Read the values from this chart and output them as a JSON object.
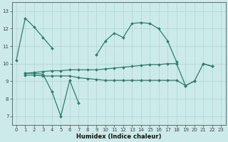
{
  "xlabel": "Humidex (Indice chaleur)",
  "x_values": [
    0,
    1,
    2,
    3,
    4,
    5,
    6,
    7,
    8,
    9,
    10,
    11,
    12,
    13,
    14,
    15,
    16,
    17,
    18,
    19,
    20,
    21,
    22,
    23
  ],
  "line1": [
    10.2,
    12.6,
    12.1,
    11.5,
    10.9,
    null,
    null,
    null,
    null,
    10.5,
    11.3,
    11.75,
    11.5,
    12.3,
    12.35,
    12.3,
    12.0,
    11.3,
    10.1,
    null,
    null,
    10.0,
    9.85,
    null
  ],
  "line2": [
    null,
    9.45,
    9.45,
    9.4,
    8.4,
    7.0,
    9.05,
    7.75,
    null,
    null,
    null,
    null,
    null,
    null,
    null,
    null,
    null,
    null,
    null,
    null,
    null,
    null,
    null,
    null
  ],
  "line3": [
    null,
    9.45,
    9.5,
    9.55,
    9.6,
    9.6,
    9.65,
    9.65,
    9.65,
    9.65,
    9.7,
    9.75,
    9.8,
    9.85,
    9.9,
    9.95,
    9.95,
    10.0,
    10.0,
    8.75,
    9.0,
    10.0,
    9.85,
    null
  ],
  "line4": [
    null,
    9.35,
    9.35,
    9.3,
    9.3,
    9.3,
    9.3,
    9.2,
    9.15,
    9.1,
    9.05,
    9.05,
    9.05,
    9.05,
    9.05,
    9.05,
    9.05,
    9.05,
    9.05,
    8.75,
    9.0,
    null,
    null,
    null
  ],
  "line_color": "#2e7d6e",
  "bg_color": "#cceaea",
  "grid_color": "#afd4d4",
  "ylim": [
    6.5,
    13.5
  ],
  "xlim": [
    -0.5,
    23.5
  ],
  "yticks": [
    7,
    8,
    9,
    10,
    11,
    12,
    13
  ],
  "xticks": [
    0,
    1,
    2,
    3,
    4,
    5,
    6,
    7,
    8,
    9,
    10,
    11,
    12,
    13,
    14,
    15,
    16,
    17,
    18,
    19,
    20,
    21,
    22,
    23
  ]
}
